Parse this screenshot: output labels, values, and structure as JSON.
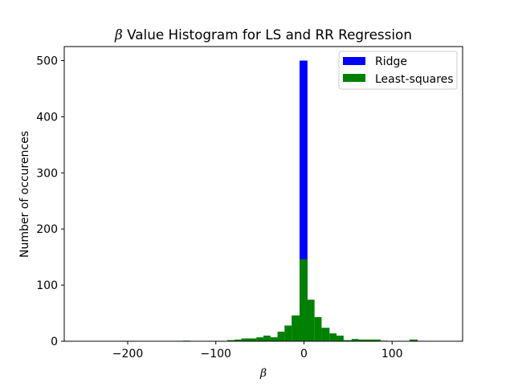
{
  "chart_data": {
    "type": "bar",
    "title": {
      "symbol": "β",
      "text": " Value Histogram for LS and RR Regression"
    },
    "xlabel": "β",
    "ylabel": "Number of occurences",
    "xlim": [
      -272,
      180
    ],
    "ylim": [
      0,
      525
    ],
    "xticks": [
      -200,
      -100,
      0,
      100
    ],
    "xtick_labels": [
      "−200",
      "−100",
      "0",
      "100"
    ],
    "yticks": [
      0,
      100,
      200,
      300,
      400,
      500
    ],
    "ytick_labels": [
      "0",
      "100",
      "200",
      "300",
      "400",
      "500"
    ],
    "grid": false,
    "legend_position": "upper right",
    "series": [
      {
        "name": "Ridge",
        "color": "#0000ff",
        "bins": [
          {
            "x0": -5,
            "x1": 4,
            "count": 500
          }
        ]
      },
      {
        "name": "Least-squares",
        "color": "#008000",
        "bins": [
          {
            "x0": -137,
            "x1": -129,
            "count": 1
          },
          {
            "x0": -87,
            "x1": -79,
            "count": 2
          },
          {
            "x0": -79,
            "x1": -71,
            "count": 3
          },
          {
            "x0": -71,
            "x1": -54,
            "count": 5
          },
          {
            "x0": -54,
            "x1": -46,
            "count": 7
          },
          {
            "x0": -46,
            "x1": -38,
            "count": 10
          },
          {
            "x0": -38,
            "x1": -30,
            "count": 7
          },
          {
            "x0": -30,
            "x1": -22,
            "count": 17
          },
          {
            "x0": -22,
            "x1": -14,
            "count": 28
          },
          {
            "x0": -14,
            "x1": -5,
            "count": 46
          },
          {
            "x0": -5,
            "x1": 4,
            "count": 146
          },
          {
            "x0": 4,
            "x1": 12,
            "count": 74
          },
          {
            "x0": 12,
            "x1": 20,
            "count": 43
          },
          {
            "x0": 20,
            "x1": 29,
            "count": 24
          },
          {
            "x0": 29,
            "x1": 37,
            "count": 14
          },
          {
            "x0": 37,
            "x1": 45,
            "count": 10
          },
          {
            "x0": 45,
            "x1": 54,
            "count": 2
          },
          {
            "x0": 54,
            "x1": 62,
            "count": 4
          },
          {
            "x0": 62,
            "x1": 87,
            "count": 3
          },
          {
            "x0": 87,
            "x1": 95,
            "count": 1
          },
          {
            "x0": 120,
            "x1": 129,
            "count": 3
          }
        ]
      }
    ]
  }
}
